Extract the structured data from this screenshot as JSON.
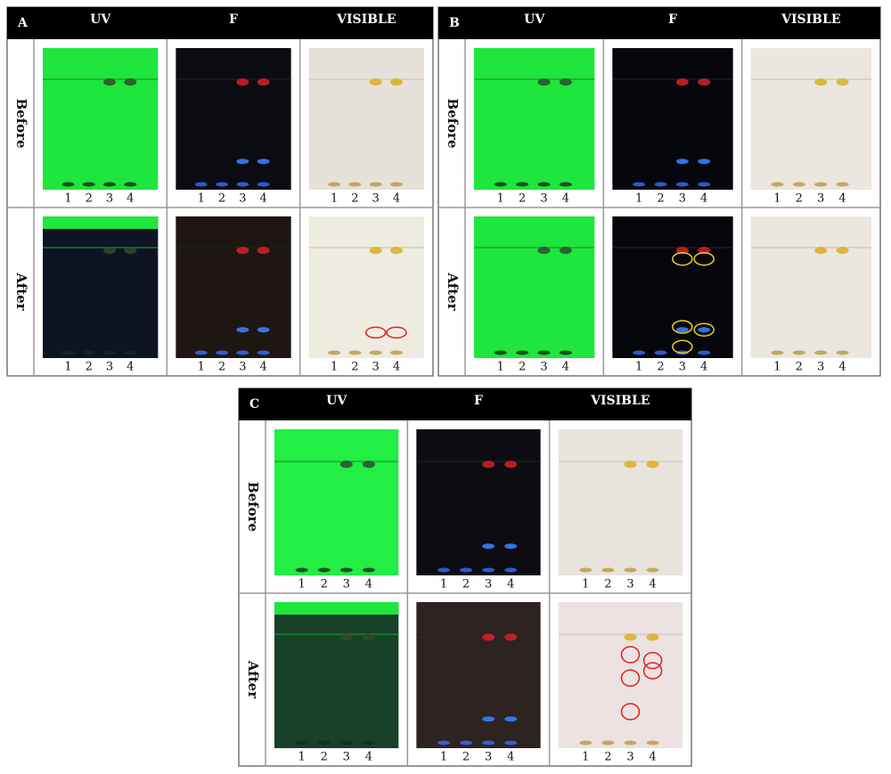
{
  "panels": [
    {
      "label": "A",
      "columns": [
        "UV",
        "F",
        "VISIBLE"
      ],
      "rows": [
        "Before",
        "After"
      ],
      "lanes": [
        "1",
        "2",
        "3",
        "4"
      ]
    },
    {
      "label": "B",
      "columns": [
        "UV",
        "F",
        "VISIBLE"
      ],
      "rows": [
        "Before",
        "After"
      ],
      "lanes": [
        "1",
        "2",
        "3",
        "4"
      ]
    },
    {
      "label": "C",
      "columns": [
        "UV",
        "F",
        "VISIBLE"
      ],
      "rows": [
        "Before",
        "After"
      ],
      "lanes": [
        "1",
        "2",
        "3",
        "4"
      ]
    }
  ]
}
